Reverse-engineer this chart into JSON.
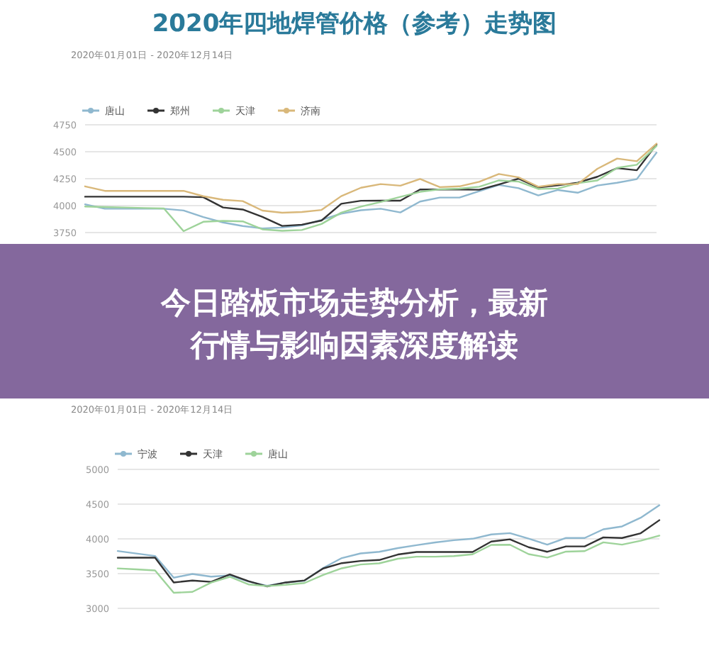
{
  "chart_data": [
    {
      "type": "line",
      "title": "2020年四地焊管价格（参考）走势图",
      "subtitle": "2020年01月01日 - 2020年12月14日",
      "legend": "top left",
      "grid": "y",
      "tick_labels": "y",
      "marker": "none",
      "line_style": "solid",
      "categories": [
        null,
        null,
        null,
        null,
        null,
        null,
        null,
        null,
        null,
        null,
        null,
        null,
        null,
        null,
        null,
        null,
        null,
        null,
        null,
        null,
        null,
        null,
        null,
        null,
        null,
        null,
        null,
        null,
        null,
        null
      ],
      "ylim": [
        3750,
        4750
      ],
      "yticks": [
        3750,
        4000,
        4250,
        4500,
        4750
      ],
      "series": [
        {
          "name": "唐山",
          "color": "#8fb8cf",
          "values": [
            4012,
            3971,
            3971,
            3971,
            3971,
            3955,
            3894,
            3844,
            3811,
            3789,
            3797,
            3817,
            3867,
            3926,
            3957,
            3971,
            3937,
            4038,
            4075,
            4075,
            4134,
            4192,
            4162,
            4095,
            4145,
            4120,
            4187,
            4212,
            4246,
            4492
          ]
        },
        {
          "name": "郑州",
          "color": "#333333",
          "values": [
            4083,
            4083,
            4083,
            4083,
            4083,
            4083,
            4078,
            3983,
            3964,
            3896,
            3812,
            3823,
            3862,
            4017,
            4045,
            4046,
            4046,
            4150,
            4150,
            4150,
            4147,
            4197,
            4250,
            4168,
            4188,
            4213,
            4268,
            4348,
            4328,
            4567
          ]
        },
        {
          "name": "天津",
          "color": "#9ed39a",
          "values": [
            3992,
            3987,
            3983,
            3978,
            3974,
            3763,
            3850,
            3859,
            3854,
            3780,
            3766,
            3774,
            3830,
            3935,
            3991,
            4034,
            4082,
            4128,
            4151,
            4158,
            4175,
            4234,
            4223,
            4155,
            4159,
            4208,
            4234,
            4350,
            4379,
            4554
          ]
        },
        {
          "name": "济南",
          "color": "#d9b87a",
          "values": [
            4179,
            4137,
            4137,
            4137,
            4137,
            4137,
            4087,
            4054,
            4042,
            3954,
            3934,
            3941,
            3960,
            4088,
            4166,
            4200,
            4185,
            4247,
            4172,
            4179,
            4221,
            4294,
            4262,
            4175,
            4200,
            4200,
            4342,
            4437,
            4412,
            4575
          ]
        }
      ]
    },
    {
      "type": "other",
      "title": "今日踏板市场走势分析，最新行情与影响因素深度解读"
    },
    {
      "type": "line",
      "subtitle": "2020年01月01日 - 2020年12月14日",
      "legend": "top left",
      "grid": "y",
      "tick_labels": "y",
      "marker": "none",
      "line_style": "solid",
      "categories": [
        null,
        null,
        null,
        null,
        null,
        null,
        null,
        null,
        null,
        null,
        null,
        null,
        null,
        null,
        null,
        null,
        null,
        null,
        null,
        null,
        null,
        null,
        null,
        null,
        null,
        null,
        null,
        null,
        null,
        null
      ],
      "ylim": [
        3000,
        5000
      ],
      "yticks": [
        3000,
        3500,
        4000,
        4500,
        5000
      ],
      "series": [
        {
          "name": "宁波",
          "color": "#8fb8cf",
          "values": [
            3825,
            3789,
            3754,
            3441,
            3495,
            3457,
            3474,
            3387,
            3325,
            3373,
            3398,
            3582,
            3724,
            3791,
            3814,
            3867,
            3909,
            3949,
            3981,
            4002,
            4064,
            4083,
            4004,
            3917,
            4013,
            4013,
            4138,
            4179,
            4304,
            4485
          ]
        },
        {
          "name": "天津",
          "color": "#333333",
          "values": [
            3730,
            3730,
            3730,
            3373,
            3400,
            3381,
            3488,
            3391,
            3316,
            3373,
            3402,
            3574,
            3651,
            3682,
            3696,
            3775,
            3811,
            3811,
            3811,
            3811,
            3962,
            3993,
            3880,
            3814,
            3892,
            3892,
            4022,
            4013,
            4081,
            4269
          ]
        },
        {
          "name": "唐山",
          "color": "#9ed39a",
          "values": [
            3575,
            3561,
            3546,
            3224,
            3237,
            3371,
            3454,
            3345,
            3320,
            3339,
            3365,
            3481,
            3577,
            3631,
            3648,
            3714,
            3744,
            3744,
            3753,
            3778,
            3913,
            3916,
            3781,
            3731,
            3817,
            3824,
            3950,
            3917,
            3973,
            4047
          ]
        }
      ]
    }
  ]
}
